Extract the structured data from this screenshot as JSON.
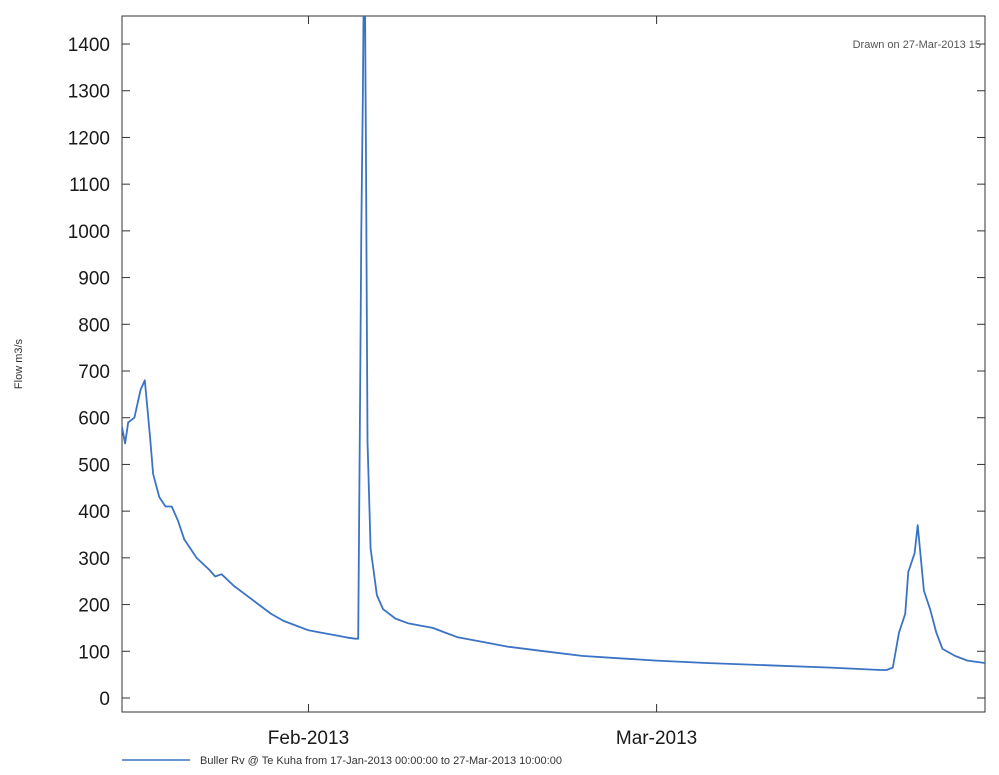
{
  "chart_data": {
    "type": "line",
    "title": "",
    "xlabel": "",
    "ylabel": "Flow m3/s",
    "annotation": "Drawn on 27-Mar-2013 15",
    "x_range": [
      "2013-01-17 00:00",
      "2013-03-27 10:00"
    ],
    "ylim": [
      -30,
      1460
    ],
    "y_ticks": [
      "0",
      "100",
      "200",
      "300",
      "400",
      "500",
      "600",
      "700",
      "800",
      "900",
      "1000",
      "1100",
      "1200",
      "1300",
      "1400"
    ],
    "x_tick_labels": [
      {
        "date": "2013-02-01",
        "label": "Feb-2013"
      },
      {
        "date": "2013-03-01",
        "label": "Mar-2013"
      }
    ],
    "legend": {
      "position": "bottom-left"
    },
    "series": [
      {
        "name": "Buller Rv @ Te Kuha from 17-Jan-2013 00:00:00 to 27-Mar-2013 10:00:00",
        "color": "#3b73c4",
        "x": [
          "2013-01-17 00:00",
          "2013-01-17 06:00",
          "2013-01-17 12:00",
          "2013-01-18 00:00",
          "2013-01-18 12:00",
          "2013-01-18 20:00",
          "2013-01-19 06:00",
          "2013-01-19 12:00",
          "2013-01-20 00:00",
          "2013-01-20 12:00",
          "2013-01-21 00:00",
          "2013-01-21 12:00",
          "2013-01-22 00:00",
          "2013-01-23 00:00",
          "2013-01-24 00:00",
          "2013-01-24 12:00",
          "2013-01-25 00:00",
          "2013-01-26 00:00",
          "2013-01-27 00:00",
          "2013-01-28 00:00",
          "2013-01-29 00:00",
          "2013-01-30 00:00",
          "2013-01-31 00:00",
          "2013-02-01 00:00",
          "2013-02-02 00:00",
          "2013-02-03 00:00",
          "2013-02-04 00:00",
          "2013-02-04 18:00",
          "2013-02-05 00:00",
          "2013-02-05 02:00",
          "2013-02-05 04:00",
          "2013-02-05 06:00",
          "2013-02-05 09:00",
          "2013-02-05 12:00",
          "2013-02-05 15:00",
          "2013-02-05 18:00",
          "2013-02-06 00:00",
          "2013-02-06 12:00",
          "2013-02-07 00:00",
          "2013-02-08 00:00",
          "2013-02-09 00:00",
          "2013-02-10 00:00",
          "2013-02-11 00:00",
          "2013-02-12 00:00",
          "2013-02-13 00:00",
          "2013-02-15 00:00",
          "2013-02-17 00:00",
          "2013-02-20 00:00",
          "2013-02-23 00:00",
          "2013-02-26 00:00",
          "2013-03-01 00:00",
          "2013-03-05 00:00",
          "2013-03-10 00:00",
          "2013-03-15 00:00",
          "2013-03-19 00:00",
          "2013-03-19 12:00",
          "2013-03-20 00:00",
          "2013-03-20 12:00",
          "2013-03-21 00:00",
          "2013-03-21 06:00",
          "2013-03-21 18:00",
          "2013-03-22 00:00",
          "2013-03-22 12:00",
          "2013-03-23 00:00",
          "2013-03-23 12:00",
          "2013-03-24 00:00",
          "2013-03-25 00:00",
          "2013-03-26 00:00",
          "2013-03-27 10:00"
        ],
        "y": [
          580,
          545,
          590,
          600,
          660,
          680,
          560,
          480,
          430,
          410,
          410,
          380,
          340,
          300,
          275,
          260,
          265,
          240,
          220,
          200,
          180,
          165,
          155,
          145,
          140,
          135,
          130,
          127,
          127,
          400,
          700,
          1000,
          1300,
          1700,
          1150,
          550,
          320,
          220,
          190,
          170,
          160,
          155,
          150,
          140,
          130,
          120,
          110,
          100,
          90,
          85,
          80,
          75,
          70,
          65,
          60,
          60,
          65,
          140,
          180,
          270,
          310,
          370,
          230,
          190,
          140,
          105,
          90,
          80,
          75
        ]
      }
    ]
  }
}
